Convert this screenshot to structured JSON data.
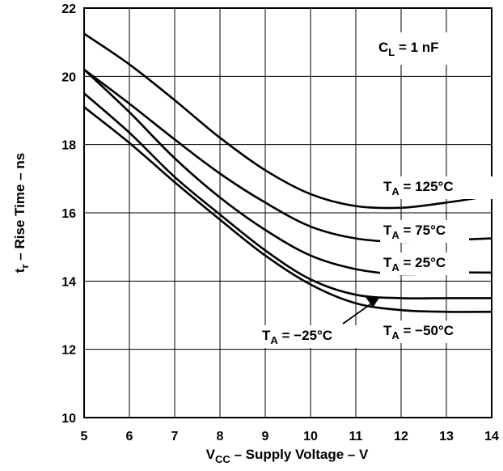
{
  "chart_data": {
    "type": "line",
    "xlabel": {
      "main": "V",
      "sub": "CC",
      "rest": " – Supply Voltage – V"
    },
    "ylabel": {
      "main": "t",
      "sub": "r",
      "rest": " – Rise Time – ns"
    },
    "xlim": [
      5,
      14
    ],
    "ylim": [
      10,
      22
    ],
    "xticks": [
      5,
      6,
      7,
      8,
      9,
      10,
      11,
      12,
      13,
      14
    ],
    "yticks": [
      10,
      12,
      14,
      16,
      18,
      20,
      22
    ],
    "grid": true,
    "annotations": {
      "cl": {
        "main": "C",
        "sub": "L",
        "rest": " = 1 nF"
      }
    },
    "series": [
      {
        "name": "T_A = 125°C",
        "label": {
          "main": "T",
          "sub": "A",
          "rest": " = 125°C"
        },
        "x": [
          5,
          6,
          7,
          8,
          9,
          10,
          11,
          12,
          13,
          14
        ],
        "y": [
          21.25,
          20.35,
          19.3,
          18.2,
          17.25,
          16.55,
          16.2,
          16.15,
          16.3,
          16.5
        ]
      },
      {
        "name": "T_A = 75°C",
        "label": {
          "main": "T",
          "sub": "A",
          "rest": " = 75°C"
        },
        "x": [
          5,
          6,
          7,
          8,
          9,
          10,
          11,
          12,
          13,
          14
        ],
        "y": [
          20.2,
          19.2,
          18.15,
          17.15,
          16.3,
          15.6,
          15.25,
          15.15,
          15.2,
          15.25
        ]
      },
      {
        "name": "T_A = 25°C",
        "label": {
          "main": "T",
          "sub": "A",
          "rest": " = 25°C"
        },
        "x": [
          5,
          6,
          7,
          8,
          9,
          10,
          11,
          12,
          13,
          14
        ],
        "y": [
          20.2,
          18.95,
          17.6,
          16.45,
          15.5,
          14.75,
          14.35,
          14.2,
          14.25,
          14.25
        ]
      },
      {
        "name": "T_A = −25°C",
        "label": {
          "main": "T",
          "sub": "A",
          "rest": " = −25°C"
        },
        "x": [
          5,
          6,
          7,
          8,
          9,
          10,
          11,
          12,
          13,
          14
        ],
        "y": [
          19.5,
          18.35,
          17.05,
          15.95,
          14.9,
          14.05,
          13.6,
          13.5,
          13.5,
          13.5
        ]
      },
      {
        "name": "T_A = −50°C",
        "label": {
          "main": "T",
          "sub": "A",
          "rest": " = −50°C"
        },
        "x": [
          5,
          6,
          7,
          8,
          9,
          10,
          11,
          12,
          13,
          14
        ],
        "y": [
          19.1,
          18.05,
          16.9,
          15.8,
          14.75,
          13.9,
          13.35,
          13.15,
          13.1,
          13.1
        ]
      }
    ]
  }
}
